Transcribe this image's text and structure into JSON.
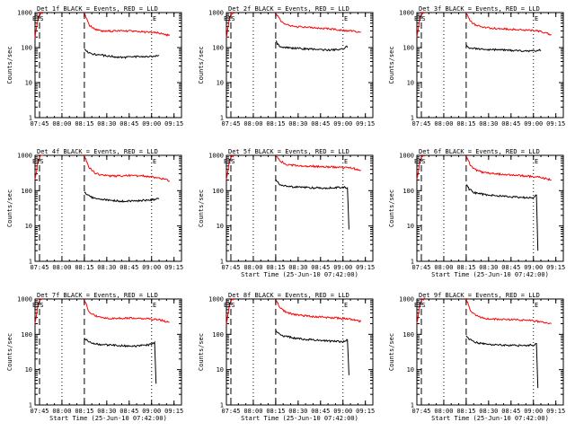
{
  "figure": {
    "background": "#ffffff"
  },
  "chart_data": [
    {
      "type": "line",
      "title": "Det 1f BLACK = Events, RED = LLD",
      "ylabel": "Counts/sec",
      "xlabel": "",
      "yscale": "log",
      "ylim": [
        1,
        1000
      ],
      "ytick_labels": [
        "1",
        "10",
        "100",
        "1000"
      ],
      "xtick_labels": [
        "07:45",
        "08:00",
        "08:15",
        "08:30",
        "08:45",
        "09:00",
        "09:15"
      ],
      "markers": [
        {
          "label": "EIS",
          "time": "07:44"
        },
        {
          "label": "E",
          "time": "09:02"
        }
      ],
      "dashed_lines": [
        "07:45",
        "08:15"
      ],
      "dotted_lines": [
        "08:00",
        "09:00"
      ],
      "series": [
        {
          "name": "LLD",
          "color": "#ff0000",
          "x": [
            "07:42",
            "07:43",
            "07:44",
            "07:45",
            "07:46",
            "07:47",
            "07:48",
            "08:15",
            "08:18",
            "08:22",
            "08:27",
            "08:35",
            "08:45",
            "08:55",
            "09:05",
            "09:12"
          ],
          "y": [
            200,
            350,
            700,
            900,
            950,
            1000,
            1000,
            1000,
            450,
            330,
            290,
            300,
            300,
            280,
            260,
            220
          ]
        },
        {
          "name": "Events",
          "color": "#000000",
          "x": [
            "08:15",
            "08:17",
            "08:20",
            "08:25",
            "08:30",
            "08:40",
            "08:50",
            "09:00",
            "09:05"
          ],
          "y": [
            90,
            75,
            65,
            62,
            58,
            52,
            55,
            55,
            60
          ]
        }
      ]
    },
    {
      "type": "line",
      "title": "Det 2f BLACK = Events, RED = LLD",
      "ylabel": "Counts/sec",
      "xlabel": "",
      "yscale": "log",
      "ylim": [
        1,
        1000
      ],
      "ytick_labels": [
        "1",
        "10",
        "100",
        "1000"
      ],
      "xtick_labels": [
        "07:45",
        "08:00",
        "08:15",
        "08:30",
        "08:45",
        "09:00",
        "09:15"
      ],
      "markers": [
        {
          "label": "EIS",
          "time": "07:44"
        },
        {
          "label": "E",
          "time": "09:02"
        }
      ],
      "dashed_lines": [
        "07:45",
        "08:15"
      ],
      "dotted_lines": [
        "08:00",
        "09:00"
      ],
      "series": [
        {
          "name": "LLD",
          "color": "#ff0000",
          "x": [
            "07:42",
            "07:43",
            "07:44",
            "07:45",
            "07:46",
            "07:47",
            "07:48",
            "08:15",
            "08:18",
            "08:22",
            "08:27",
            "08:35",
            "08:45",
            "08:55",
            "09:05",
            "09:12"
          ],
          "y": [
            200,
            350,
            700,
            900,
            950,
            1000,
            1000,
            1000,
            600,
            450,
            400,
            380,
            360,
            330,
            300,
            270
          ]
        },
        {
          "name": "Events",
          "color": "#000000",
          "x": [
            "08:15",
            "08:16",
            "08:18",
            "08:22",
            "08:30",
            "08:40",
            "08:50",
            "09:00",
            "09:02",
            "09:03"
          ],
          "y": [
            160,
            130,
            110,
            100,
            95,
            90,
            85,
            90,
            110,
            100
          ]
        }
      ]
    },
    {
      "type": "line",
      "title": "Det 3f BLACK = Events, RED = LLD",
      "ylabel": "Counts/sec",
      "xlabel": "",
      "yscale": "log",
      "ylim": [
        1,
        1000
      ],
      "ytick_labels": [
        "1",
        "10",
        "100",
        "1000"
      ],
      "xtick_labels": [
        "07:45",
        "08:00",
        "08:15",
        "08:30",
        "08:45",
        "09:00",
        "09:15"
      ],
      "markers": [
        {
          "label": "EIS",
          "time": "07:44"
        },
        {
          "label": "E",
          "time": "09:02"
        }
      ],
      "dashed_lines": [
        "07:45",
        "08:15"
      ],
      "dotted_lines": [
        "08:00",
        "09:00"
      ],
      "series": [
        {
          "name": "LLD",
          "color": "#ff0000",
          "x": [
            "07:42",
            "07:43",
            "07:44",
            "07:45",
            "07:46",
            "07:47",
            "07:48",
            "08:15",
            "08:18",
            "08:22",
            "08:27",
            "08:35",
            "08:45",
            "08:55",
            "09:05",
            "09:12"
          ],
          "y": [
            200,
            350,
            700,
            900,
            950,
            1000,
            1000,
            1000,
            550,
            430,
            380,
            350,
            330,
            320,
            290,
            230
          ]
        },
        {
          "name": "Events",
          "color": "#000000",
          "x": [
            "08:15",
            "08:17",
            "08:20",
            "08:25",
            "08:30",
            "08:40",
            "08:50",
            "09:00",
            "09:05"
          ],
          "y": [
            120,
            100,
            95,
            90,
            88,
            85,
            82,
            80,
            85
          ]
        }
      ]
    },
    {
      "type": "line",
      "title": "Det 4f BLACK = Events, RED = LLD",
      "ylabel": "Counts/sec",
      "xlabel": "",
      "yscale": "log",
      "ylim": [
        1,
        1000
      ],
      "ytick_labels": [
        "1",
        "10",
        "100",
        "1000"
      ],
      "xtick_labels": [
        "07:45",
        "08:00",
        "08:15",
        "08:30",
        "08:45",
        "09:00",
        "09:15"
      ],
      "markers": [
        {
          "label": "EIS",
          "time": "07:44"
        },
        {
          "label": "E",
          "time": "09:02"
        }
      ],
      "dashed_lines": [
        "07:45",
        "08:15"
      ],
      "dotted_lines": [
        "08:00",
        "09:00"
      ],
      "series": [
        {
          "name": "LLD",
          "color": "#ff0000",
          "x": [
            "07:42",
            "07:43",
            "07:44",
            "07:45",
            "07:46",
            "07:47",
            "07:48",
            "08:15",
            "08:18",
            "08:22",
            "08:27",
            "08:35",
            "08:45",
            "08:55",
            "09:05",
            "09:12"
          ],
          "y": [
            200,
            350,
            700,
            900,
            950,
            1000,
            1000,
            1000,
            450,
            320,
            270,
            260,
            270,
            260,
            230,
            190
          ]
        },
        {
          "name": "Events",
          "color": "#000000",
          "x": [
            "08:15",
            "08:17",
            "08:20",
            "08:25",
            "08:30",
            "08:40",
            "08:50",
            "09:00",
            "09:05"
          ],
          "y": [
            90,
            75,
            65,
            58,
            55,
            50,
            52,
            55,
            60
          ]
        }
      ]
    },
    {
      "type": "line",
      "title": "Det 5f BLACK = Events, RED = LLD",
      "ylabel": "Counts/sec",
      "xlabel": "Start Time (25-Jun-10 07:42:00)",
      "yscale": "log",
      "ylim": [
        1,
        1000
      ],
      "ytick_labels": [
        "1",
        "10",
        "100",
        "1000"
      ],
      "xtick_labels": [
        "07:45",
        "08:00",
        "08:15",
        "08:30",
        "08:45",
        "09:00",
        "09:15"
      ],
      "markers": [
        {
          "label": "EIS",
          "time": "07:44"
        },
        {
          "label": "E",
          "time": "09:02"
        }
      ],
      "dashed_lines": [
        "07:45",
        "08:15"
      ],
      "dotted_lines": [
        "08:00",
        "09:00"
      ],
      "series": [
        {
          "name": "LLD",
          "color": "#ff0000",
          "x": [
            "07:42",
            "07:43",
            "07:44",
            "07:45",
            "07:46",
            "07:47",
            "07:48",
            "08:15",
            "08:18",
            "08:22",
            "08:27",
            "08:35",
            "08:45",
            "08:55",
            "09:05",
            "09:12"
          ],
          "y": [
            200,
            350,
            700,
            900,
            950,
            1000,
            1000,
            1000,
            700,
            550,
            520,
            500,
            480,
            460,
            440,
            380
          ]
        },
        {
          "name": "Events",
          "color": "#000000",
          "x": [
            "08:15",
            "08:17",
            "08:20",
            "08:25",
            "08:30",
            "08:40",
            "08:50",
            "09:00",
            "09:03",
            "09:04"
          ],
          "y": [
            200,
            160,
            140,
            130,
            125,
            120,
            120,
            125,
            120,
            8
          ]
        }
      ]
    },
    {
      "type": "line",
      "title": "Det 6f BLACK = Events, RED = LLD",
      "ylabel": "Counts/sec",
      "xlabel": "Start Time (25-Jun-10 07:42:00)",
      "yscale": "log",
      "ylim": [
        1,
        1000
      ],
      "ytick_labels": [
        "1",
        "10",
        "100",
        "1000"
      ],
      "xtick_labels": [
        "07:45",
        "08:00",
        "08:15",
        "08:30",
        "08:45",
        "09:00",
        "09:15"
      ],
      "markers": [
        {
          "label": "EIS",
          "time": "07:44"
        },
        {
          "label": "E",
          "time": "09:02"
        }
      ],
      "dashed_lines": [
        "07:45",
        "08:15"
      ],
      "dotted_lines": [
        "08:00",
        "09:00"
      ],
      "series": [
        {
          "name": "LLD",
          "color": "#ff0000",
          "x": [
            "07:42",
            "07:43",
            "07:44",
            "07:45",
            "07:46",
            "07:47",
            "07:48",
            "08:15",
            "08:18",
            "08:22",
            "08:27",
            "08:35",
            "08:45",
            "08:55",
            "09:05",
            "09:12"
          ],
          "y": [
            200,
            350,
            700,
            900,
            950,
            1000,
            1000,
            1000,
            500,
            380,
            320,
            300,
            280,
            260,
            240,
            200
          ]
        },
        {
          "name": "Events",
          "color": "#000000",
          "x": [
            "08:15",
            "08:17",
            "08:20",
            "08:25",
            "08:30",
            "08:40",
            "08:50",
            "09:00",
            "09:02",
            "09:03"
          ],
          "y": [
            150,
            110,
            90,
            80,
            75,
            70,
            65,
            62,
            75,
            2
          ]
        }
      ]
    },
    {
      "type": "line",
      "title": "Det 7f BLACK = Events, RED = LLD",
      "ylabel": "Counts/sec",
      "xlabel": "Start Time (25-Jun-10 07:42:00)",
      "yscale": "log",
      "ylim": [
        1,
        1000
      ],
      "ytick_labels": [
        "1",
        "10",
        "100",
        "1000"
      ],
      "xtick_labels": [
        "07:45",
        "08:00",
        "08:15",
        "08:30",
        "08:45",
        "09:00",
        "09:15"
      ],
      "markers": [
        {
          "label": "EIS",
          "time": "07:44"
        },
        {
          "label": "E",
          "time": "09:02"
        }
      ],
      "dashed_lines": [
        "07:45",
        "08:15"
      ],
      "dotted_lines": [
        "08:00",
        "09:00"
      ],
      "series": [
        {
          "name": "LLD",
          "color": "#ff0000",
          "x": [
            "07:42",
            "07:43",
            "07:44",
            "07:45",
            "07:46",
            "07:47",
            "07:48",
            "08:15",
            "08:18",
            "08:22",
            "08:27",
            "08:35",
            "08:45",
            "08:55",
            "09:05",
            "09:12"
          ],
          "y": [
            200,
            350,
            700,
            900,
            950,
            1000,
            1000,
            1000,
            450,
            340,
            290,
            280,
            290,
            280,
            260,
            220
          ]
        },
        {
          "name": "Events",
          "color": "#000000",
          "x": [
            "08:15",
            "08:17",
            "08:20",
            "08:25",
            "08:30",
            "08:40",
            "08:50",
            "09:00",
            "09:02",
            "09:03"
          ],
          "y": [
            80,
            65,
            58,
            52,
            50,
            48,
            46,
            52,
            60,
            4
          ]
        }
      ]
    },
    {
      "type": "line",
      "title": "Det 8f BLACK = Events, RED = LLD",
      "ylabel": "Counts/sec",
      "xlabel": "Start Time (25-Jun-10 07:42:00)",
      "yscale": "log",
      "ylim": [
        1,
        1000
      ],
      "ytick_labels": [
        "1",
        "10",
        "100",
        "1000"
      ],
      "xtick_labels": [
        "07:45",
        "08:00",
        "08:15",
        "08:30",
        "08:45",
        "09:00",
        "09:15"
      ],
      "markers": [
        {
          "label": "EIS",
          "time": "07:44"
        },
        {
          "label": "E",
          "time": "09:02"
        }
      ],
      "dashed_lines": [
        "07:45",
        "08:15"
      ],
      "dotted_lines": [
        "08:00",
        "09:00"
      ],
      "series": [
        {
          "name": "LLD",
          "color": "#ff0000",
          "x": [
            "07:42",
            "07:43",
            "07:44",
            "07:45",
            "07:46",
            "07:47",
            "07:48",
            "08:15",
            "08:18",
            "08:22",
            "08:27",
            "08:35",
            "08:45",
            "08:55",
            "09:05",
            "09:12"
          ],
          "y": [
            200,
            350,
            700,
            900,
            950,
            1000,
            1000,
            1000,
            550,
            420,
            370,
            330,
            310,
            290,
            270,
            230
          ]
        },
        {
          "name": "Events",
          "color": "#000000",
          "x": [
            "08:15",
            "08:17",
            "08:20",
            "08:25",
            "08:30",
            "08:40",
            "08:50",
            "09:00",
            "09:03",
            "09:04"
          ],
          "y": [
            130,
            105,
            90,
            82,
            75,
            70,
            65,
            62,
            70,
            7
          ]
        }
      ]
    },
    {
      "type": "line",
      "title": "Det 9f BLACK = Events, RED = LLD",
      "ylabel": "Counts/sec",
      "xlabel": "Start Time (25-Jun-10 07:42:00)",
      "yscale": "log",
      "ylim": [
        1,
        1000
      ],
      "ytick_labels": [
        "1",
        "10",
        "100",
        "1000"
      ],
      "xtick_labels": [
        "07:45",
        "08:00",
        "08:15",
        "08:30",
        "08:45",
        "09:00",
        "09:15"
      ],
      "markers": [
        {
          "label": "EIS",
          "time": "07:44"
        },
        {
          "label": "E",
          "time": "09:02"
        }
      ],
      "dashed_lines": [
        "07:45",
        "08:15"
      ],
      "dotted_lines": [
        "08:00",
        "09:00"
      ],
      "series": [
        {
          "name": "LLD",
          "color": "#ff0000",
          "x": [
            "07:42",
            "07:43",
            "07:44",
            "07:45",
            "07:46",
            "07:47",
            "07:48",
            "08:15",
            "08:18",
            "08:22",
            "08:27",
            "08:35",
            "08:45",
            "08:55",
            "09:05",
            "09:12"
          ],
          "y": [
            200,
            350,
            700,
            900,
            950,
            1000,
            1000,
            1000,
            450,
            330,
            280,
            270,
            260,
            250,
            230,
            200
          ]
        },
        {
          "name": "Events",
          "color": "#000000",
          "x": [
            "08:15",
            "08:17",
            "08:20",
            "08:25",
            "08:30",
            "08:40",
            "08:50",
            "09:00",
            "09:02",
            "09:03"
          ],
          "y": [
            90,
            75,
            62,
            55,
            52,
            50,
            48,
            50,
            55,
            3
          ]
        }
      ]
    }
  ]
}
